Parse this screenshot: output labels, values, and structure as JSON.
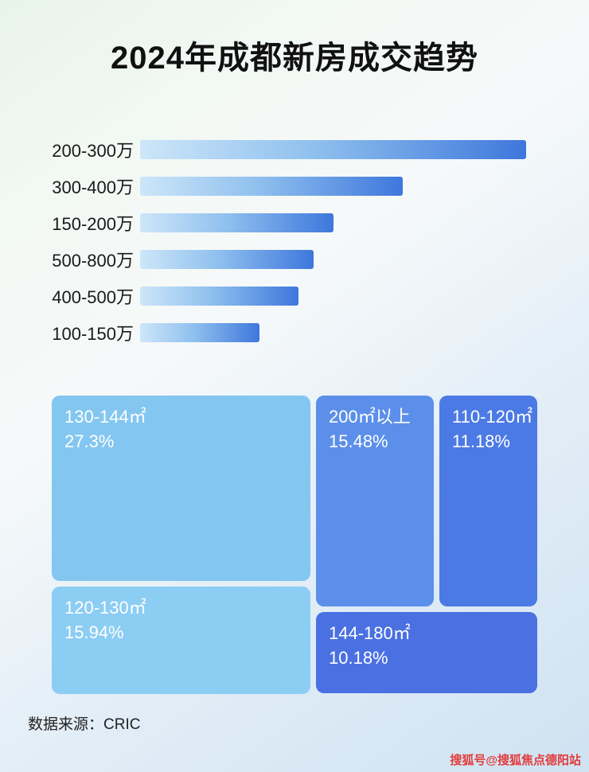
{
  "title": "2024年成都新房成交趋势",
  "footer": {
    "source_label": "数据来源：CRIC"
  },
  "watermark": "搜狐号@搜狐焦点德阳站",
  "colors": {
    "bar_gradient_start": "#cde6f9",
    "bar_gradient_end": "#3e77dc",
    "treemap_130_144": "#83c6f0",
    "treemap_120_130": "#8ccdf3",
    "treemap_200_plus": "#5c8fe9",
    "treemap_110_120": "#4c7ae5",
    "treemap_144_180": "#4a70e2",
    "title_color": "#111111",
    "watermark_color": "#e23b3b"
  },
  "chart_data": [
    {
      "type": "bar",
      "orientation": "horizontal",
      "title": "2024年成都新房成交趋势",
      "categories": [
        "200-300万",
        "300-400万",
        "150-200万",
        "500-800万",
        "400-500万",
        "100-150万"
      ],
      "values_pct_of_longest": [
        100,
        68,
        50,
        45,
        41,
        31
      ],
      "value_labels_shown": false,
      "grid": false,
      "legend": false
    },
    {
      "type": "treemap",
      "title": "",
      "items": [
        {
          "label": "130-144㎡",
          "value_pct": 27.3,
          "display": "27.3%"
        },
        {
          "label": "120-130㎡",
          "value_pct": 15.94,
          "display": "15.94%"
        },
        {
          "label": "200㎡以上",
          "value_pct": 15.48,
          "display": "15.48%"
        },
        {
          "label": "110-120㎡",
          "value_pct": 11.18,
          "display": "11.18%"
        },
        {
          "label": "144-180㎡",
          "value_pct": 10.18,
          "display": "10.18%"
        }
      ]
    }
  ]
}
